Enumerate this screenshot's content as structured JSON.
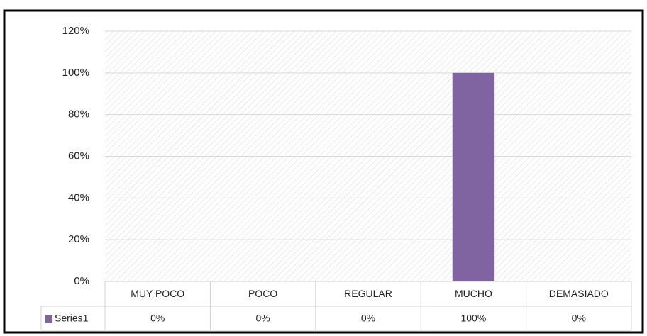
{
  "chart_data": {
    "type": "bar",
    "categories": [
      "MUY POCO",
      "POCO",
      "REGULAR",
      "MUCHO",
      "DEMASIADO"
    ],
    "series": [
      {
        "name": "Series1",
        "color": "#8064a2",
        "values": [
          0,
          0,
          0,
          100,
          0
        ],
        "value_labels": [
          "0%",
          "0%",
          "0%",
          "100%",
          "0%"
        ]
      }
    ],
    "ylim": [
      0,
      120
    ],
    "yticks": [
      {
        "value": 0,
        "label": "0%"
      },
      {
        "value": 20,
        "label": "20%"
      },
      {
        "value": 40,
        "label": "40%"
      },
      {
        "value": 60,
        "label": "60%"
      },
      {
        "value": 80,
        "label": "80%"
      },
      {
        "value": 100,
        "label": "100%"
      },
      {
        "value": 120,
        "label": "120%"
      }
    ],
    "grid": true,
    "data_table": true
  }
}
